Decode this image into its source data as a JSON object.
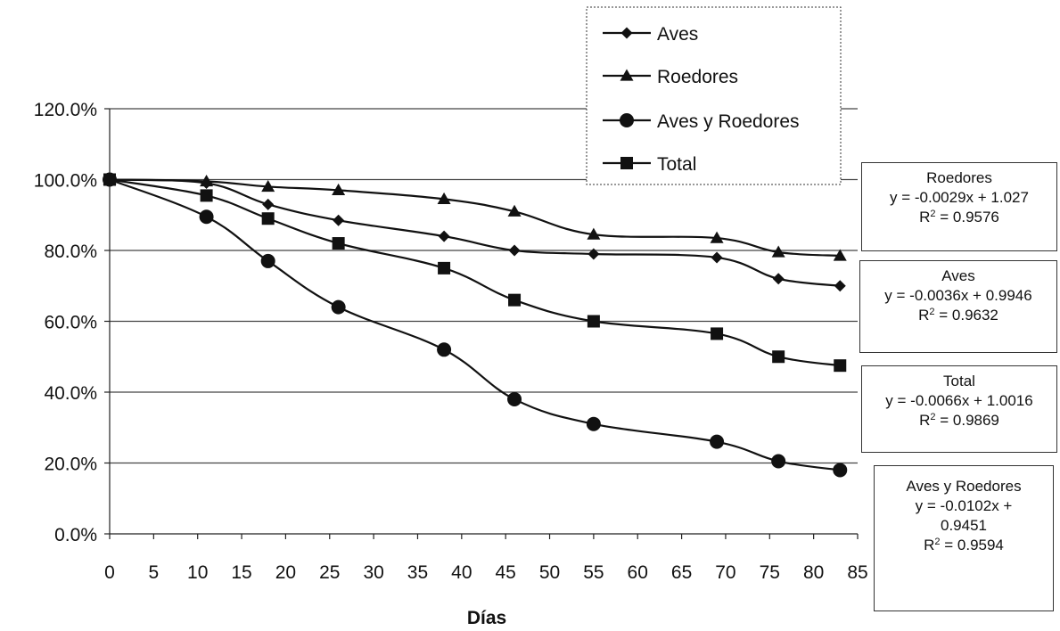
{
  "chart_data": {
    "type": "line",
    "xlabel": "Días",
    "ylabel": "",
    "xlim": [
      0,
      85
    ],
    "ylim": [
      0,
      120
    ],
    "x_ticks": [
      "0",
      "5",
      "10",
      "15",
      "20",
      "25",
      "30",
      "35",
      "40",
      "45",
      "50",
      "55",
      "60",
      "65",
      "70",
      "75",
      "80",
      "85"
    ],
    "y_ticks": [
      "0.0%",
      "20.0%",
      "40.0%",
      "60.0%",
      "80.0%",
      "100.0%",
      "120.0%"
    ],
    "grid": "horizontal",
    "legend_position": "top-right",
    "series": [
      {
        "name": "Aves",
        "marker": "diamond",
        "x": [
          0,
          11,
          18,
          26,
          38,
          46,
          55,
          69,
          76,
          83
        ],
        "y": [
          100,
          99,
          93,
          88.5,
          84,
          80,
          79,
          78,
          72,
          70
        ]
      },
      {
        "name": "Roedores",
        "marker": "triangle",
        "x": [
          0,
          11,
          18,
          26,
          38,
          46,
          55,
          69,
          76,
          83
        ],
        "y": [
          100,
          99.5,
          98,
          97,
          94.5,
          91,
          84.5,
          83.5,
          79.5,
          78.5
        ]
      },
      {
        "name": "Aves y Roedores",
        "marker": "circle",
        "x": [
          0,
          11,
          18,
          26,
          38,
          46,
          55,
          69,
          76,
          83
        ],
        "y": [
          100,
          89.5,
          77,
          64,
          52,
          38,
          31,
          26,
          20.5,
          18
        ]
      },
      {
        "name": "Total",
        "marker": "square",
        "x": [
          0,
          11,
          18,
          26,
          38,
          46,
          55,
          69,
          76,
          83
        ],
        "y": [
          100,
          95.5,
          89,
          82,
          75,
          66,
          60,
          56.5,
          50,
          47.5
        ]
      }
    ],
    "annotations": [
      {
        "title": "Roedores",
        "equation": "y = -0.0029x + 1.027",
        "r2_label": "R",
        "r2_value": " = 0.9576"
      },
      {
        "title": "Aves",
        "equation": "y = -0.0036x + 0.9946",
        "r2_label": "R",
        "r2_value": " = 0.9632"
      },
      {
        "title": "Total",
        "equation": "y = -0.0066x + 1.0016",
        "r2_label": "R",
        "r2_value": " = 0.9869"
      },
      {
        "title": "Aves y Roedores",
        "equation": "y = -0.0102x +",
        "equation2": "0.9451",
        "r2_label": "R",
        "r2_value": " = 0.9594"
      }
    ]
  }
}
